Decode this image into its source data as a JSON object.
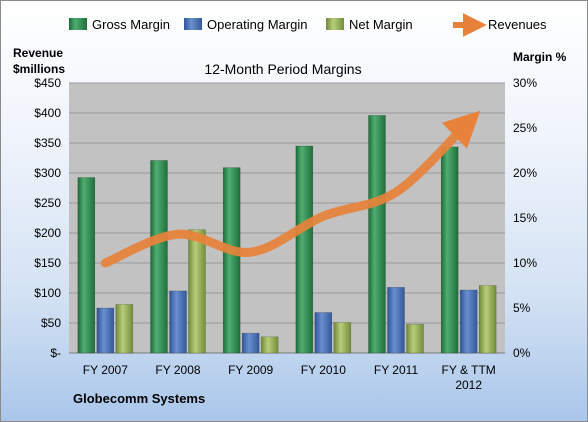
{
  "chart_data": {
    "type": "bar",
    "title": "12-Month Period Margins",
    "left_axis_title_line1": "Revenue",
    "left_axis_title_line2": "$millions",
    "right_axis_title": "Margin %",
    "categories": [
      [
        "FY 2007"
      ],
      [
        "FY 2008"
      ],
      [
        "FY 2009"
      ],
      [
        "FY 2010"
      ],
      [
        "FY 2011"
      ],
      [
        "FY & TTM",
        "2012"
      ]
    ],
    "left_ticks": [
      "$-",
      "$50",
      "$100",
      "$150",
      "$200",
      "$250",
      "$300",
      "$350",
      "$400",
      "$450"
    ],
    "right_ticks": [
      "0%",
      "5%",
      "10%",
      "15%",
      "20%",
      "25%",
      "30%"
    ],
    "ylim_left": [
      0,
      450
    ],
    "ylim_right": [
      0,
      30
    ],
    "grid": true,
    "legend_position": "top",
    "series": [
      {
        "name": "Gross Margin",
        "axis": "right",
        "values": [
          19.5,
          21.4,
          20.6,
          23.0,
          26.4,
          22.9
        ],
        "color": "#2e8b4f"
      },
      {
        "name": "Operating Margin",
        "axis": "right",
        "values": [
          5.0,
          6.9,
          2.2,
          4.5,
          7.3,
          7.0
        ],
        "color": "#4a72b8"
      },
      {
        "name": "Net Margin",
        "axis": "right",
        "values": [
          5.4,
          13.7,
          1.8,
          3.4,
          3.2,
          7.5
        ],
        "color": "#9ab455"
      },
      {
        "name": "Revenues",
        "type": "line",
        "axis": "left",
        "values": [
          150,
          198,
          168,
          228,
          268,
          385
        ],
        "color": "#e8823a"
      }
    ],
    "footnote": "Globecomm Systems"
  }
}
